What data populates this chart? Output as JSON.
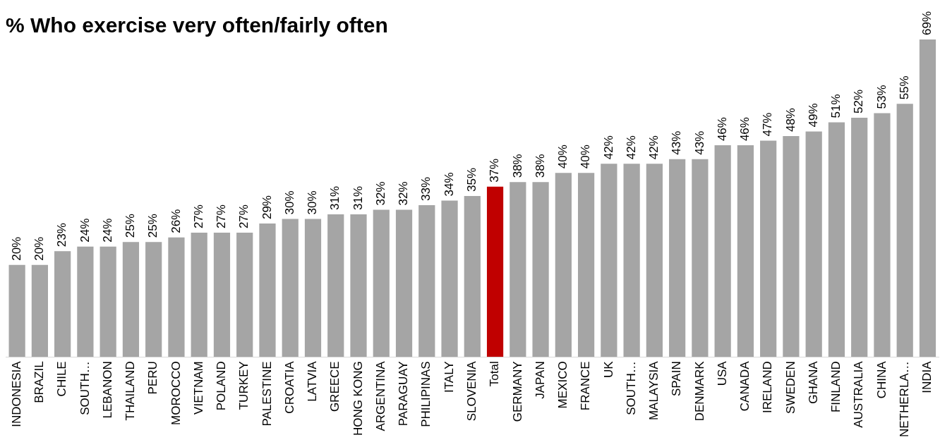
{
  "chart_data": {
    "type": "bar",
    "title": "% Who exercise very often/fairly often",
    "categories": [
      "INDONESIA",
      "BRAZIL",
      "CHILE",
      "SOUTH…",
      "LEBANON",
      "THAILAND",
      "PERU",
      "MOROCCO",
      "VIETNAM",
      "POLAND",
      "TURKEY",
      "PALESTINE",
      "CROATIA",
      "LATVIA",
      "GREECE",
      "HONG KONG",
      "ARGENTINA",
      "PARAGUAY",
      "PHILIPINAS",
      "ITALY",
      "SLOVENIA",
      "Total",
      "GERMANY",
      "JAPAN",
      "MEXICO",
      "FRANCE",
      "UK",
      "SOUTH…",
      "MALAYSIA",
      "SPAIN",
      "DENMARK",
      "USA",
      "CANADA",
      "IRELAND",
      "SWEDEN",
      "GHANA",
      "FINLAND",
      "AUSTRALIA",
      "CHINA",
      "NETHERLA…",
      "INDIA"
    ],
    "values": [
      20,
      20,
      23,
      24,
      24,
      25,
      25,
      26,
      27,
      27,
      27,
      29,
      30,
      30,
      31,
      31,
      32,
      32,
      33,
      34,
      35,
      37,
      38,
      38,
      40,
      40,
      42,
      42,
      42,
      43,
      43,
      46,
      46,
      47,
      48,
      49,
      51,
      52,
      53,
      55,
      69
    ],
    "value_labels": [
      "20%",
      "20%",
      "23%",
      "24%",
      "24%",
      "25%",
      "25%",
      "26%",
      "27%",
      "27%",
      "27%",
      "29%",
      "30%",
      "30%",
      "31%",
      "31%",
      "32%",
      "32%",
      "33%",
      "34%",
      "35%",
      "37%",
      "38%",
      "38%",
      "40%",
      "40%",
      "42%",
      "42%",
      "42%",
      "43%",
      "43%",
      "46%",
      "46%",
      "47%",
      "48%",
      "49%",
      "51%",
      "52%",
      "53%",
      "55%",
      "69%"
    ],
    "colors": [
      "#a5a5a5",
      "#a5a5a5",
      "#a5a5a5",
      "#a5a5a5",
      "#a5a5a5",
      "#a5a5a5",
      "#a5a5a5",
      "#a5a5a5",
      "#a5a5a5",
      "#a5a5a5",
      "#a5a5a5",
      "#a5a5a5",
      "#a5a5a5",
      "#a5a5a5",
      "#a5a5a5",
      "#a5a5a5",
      "#a5a5a5",
      "#a5a5a5",
      "#a5a5a5",
      "#a5a5a5",
      "#a5a5a5",
      "#c00000",
      "#a5a5a5",
      "#a5a5a5",
      "#a5a5a5",
      "#a5a5a5",
      "#a5a5a5",
      "#a5a5a5",
      "#a5a5a5",
      "#a5a5a5",
      "#a5a5a5",
      "#a5a5a5",
      "#a5a5a5",
      "#a5a5a5",
      "#a5a5a5",
      "#a5a5a5",
      "#a5a5a5",
      "#a5a5a5",
      "#a5a5a5",
      "#a5a5a5",
      "#a5a5a5"
    ],
    "grid": false,
    "legend": false
  }
}
